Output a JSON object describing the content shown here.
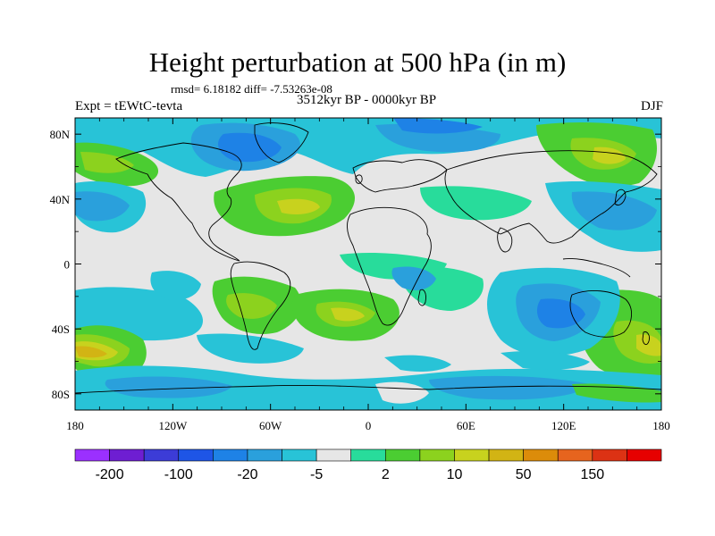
{
  "title": "Height perturbation at 500 hPa (in m)",
  "stats": "rmsd= 6.18182 diff= -7.53263e-08",
  "experiment": "Expt = tEWtC-tevta",
  "period": "3512kyr BP - 0000kyr BP",
  "season": "DJF",
  "map": {
    "lon_ticks": [
      "180",
      "120W",
      "60W",
      "0",
      "60E",
      "120E",
      "180"
    ],
    "lat_ticks": [
      "80N",
      "40N",
      "0",
      "40S",
      "80S"
    ],
    "colors": {
      "neutral": "#e6e6e6",
      "ocean_land_lines": "#000000"
    }
  },
  "colorbar": {
    "colors": [
      "#9b30ff",
      "#6e1ed2",
      "#3c3cd7",
      "#1e55e6",
      "#1e82e6",
      "#2aa0dc",
      "#28c3d7",
      "#e6e6e6",
      "#28dc9b",
      "#4bcd32",
      "#8cd21e",
      "#c8d21e",
      "#d2b414",
      "#dc8c0a",
      "#e6641e",
      "#dc3214",
      "#e60000"
    ],
    "labels": [
      "-200",
      "-100",
      "-20",
      "-5",
      "2",
      "10",
      "50",
      "150"
    ]
  }
}
